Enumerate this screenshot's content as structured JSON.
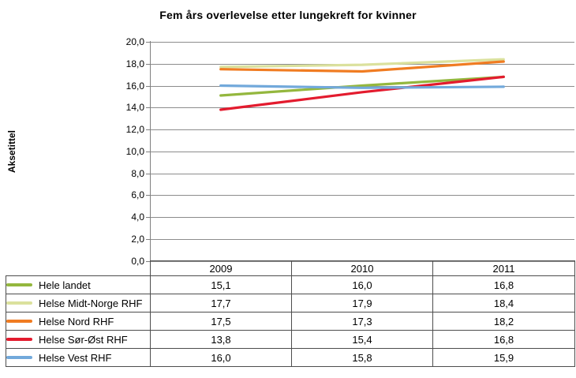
{
  "chart_data": {
    "type": "line",
    "title": "Fem års overlevelse etter lungekreft for kvinner",
    "ylabel": "Aksetittel",
    "xlabel": "",
    "categories": [
      "2009",
      "2010",
      "2011"
    ],
    "series": [
      {
        "name": "Hele landet",
        "color": "#94B73E",
        "values": [
          15.1,
          16.0,
          16.8
        ],
        "display": [
          "15,1",
          "16,0",
          "16,8"
        ]
      },
      {
        "name": "Helse Midt-Norge RHF",
        "color": "#DBE19D",
        "values": [
          17.7,
          17.9,
          18.4
        ],
        "display": [
          "17,7",
          "17,9",
          "18,4"
        ]
      },
      {
        "name": "Helse Nord RHF",
        "color": "#F07C22",
        "values": [
          17.5,
          17.3,
          18.2
        ],
        "display": [
          "17,5",
          "17,3",
          "18,2"
        ]
      },
      {
        "name": "Helse Sør-Øst RHF",
        "color": "#E31B2E",
        "values": [
          13.8,
          15.4,
          16.8
        ],
        "display": [
          "13,8",
          "15,4",
          "16,8"
        ]
      },
      {
        "name": "Helse Vest RHF",
        "color": "#72A9DB",
        "values": [
          16.0,
          15.8,
          15.9
        ],
        "display": [
          "16,0",
          "15,8",
          "15,9"
        ]
      }
    ],
    "ylim": [
      0,
      20
    ],
    "ytick_step": 2,
    "ytick_labels": [
      "0,0",
      "2,0",
      "4,0",
      "6,0",
      "8,0",
      "10,0",
      "12,0",
      "14,0",
      "16,0",
      "18,0",
      "20,0"
    ],
    "grid": true,
    "legend_position": "table-left-column",
    "colors": {
      "gridline": "#8C8C8C",
      "axis": "#808080",
      "table_border": "#4D4D4D",
      "text": "#000000",
      "background": "#FFFFFF"
    }
  }
}
